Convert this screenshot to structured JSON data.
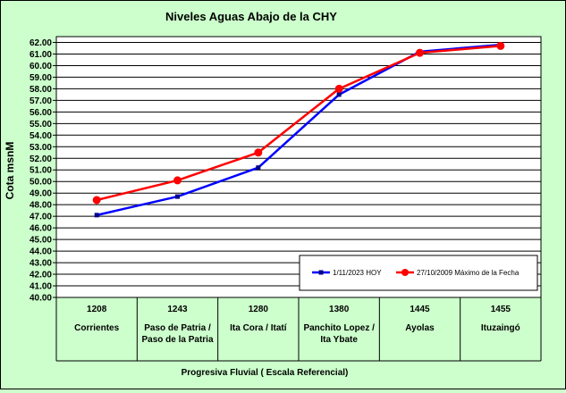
{
  "chart_data": {
    "type": "line",
    "title": "Niveles Aguas Abajo de la CHY",
    "ylabel": "Cota msnM",
    "xlabel": "Progresiva Fluvial ( Escala Referencial)",
    "ylim": [
      40,
      62.5
    ],
    "ytick_step": 1,
    "categories": [
      {
        "km": "1208",
        "name": [
          "Corrientes"
        ]
      },
      {
        "km": "1243",
        "name": [
          "Paso de Patria /",
          "Paso de la Patria"
        ]
      },
      {
        "km": "1280",
        "name": [
          "Ita Cora / Itatí"
        ]
      },
      {
        "km": "1380",
        "name": [
          "Panchito Lopez /",
          "Ita Ybate"
        ]
      },
      {
        "km": "1445",
        "name": [
          "Ayolas"
        ]
      },
      {
        "km": "1455",
        "name": [
          "Ituzaingó"
        ]
      }
    ],
    "series": [
      {
        "name": "1/11/2023 HOY",
        "color": "#0000ff",
        "marker": "square",
        "values": [
          47.1,
          48.7,
          51.2,
          57.5,
          61.2,
          61.8
        ]
      },
      {
        "name": "27/10/2009 Máximo de la Fecha",
        "color": "#ff0000",
        "marker": "circle",
        "values": [
          48.4,
          50.1,
          52.5,
          58.0,
          61.1,
          61.7
        ]
      }
    ],
    "legend_position": "bottom-right",
    "grid": true
  }
}
